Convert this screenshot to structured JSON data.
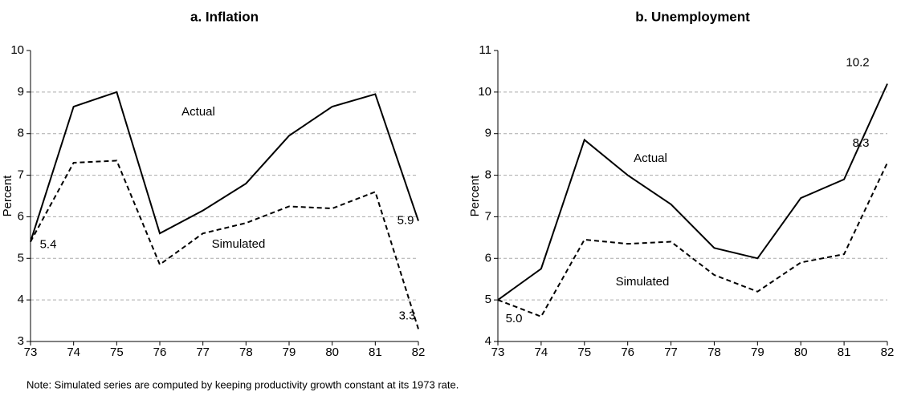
{
  "chart_data": [
    {
      "type": "line",
      "title": "a.  Inflation",
      "y_label": "Percent",
      "categories": [
        "73",
        "74",
        "75",
        "76",
        "77",
        "78",
        "79",
        "80",
        "81",
        "82"
      ],
      "ylim": [
        3,
        10
      ],
      "yticks": [
        3,
        4,
        5,
        6,
        7,
        8,
        9,
        10
      ],
      "grid": true,
      "series": [
        {
          "name": "Actual",
          "color": "#000000",
          "style": "solid",
          "values": [
            5.4,
            8.65,
            9.0,
            5.6,
            6.15,
            6.8,
            7.95,
            8.65,
            8.95,
            5.9
          ],
          "value_labels": [
            "5.4",
            null,
            null,
            null,
            null,
            null,
            null,
            null,
            null,
            "5.9"
          ]
        },
        {
          "name": "Simulated",
          "color": "#000000",
          "style": "dashed",
          "values": [
            5.4,
            7.3,
            7.35,
            4.85,
            5.6,
            5.85,
            6.25,
            6.2,
            6.6,
            3.3
          ],
          "value_labels": [
            null,
            null,
            null,
            null,
            null,
            null,
            null,
            null,
            null,
            "3.3"
          ]
        }
      ]
    },
    {
      "type": "line",
      "title": "b.  Unemployment",
      "y_label": "Percent",
      "categories": [
        "73",
        "74",
        "75",
        "76",
        "77",
        "78",
        "79",
        "80",
        "81",
        "82"
      ],
      "ylim": [
        4,
        11
      ],
      "yticks": [
        4,
        5,
        6,
        7,
        8,
        9,
        10,
        11
      ],
      "grid": true,
      "series": [
        {
          "name": "Actual",
          "color": "#000000",
          "style": "solid",
          "values": [
            5.0,
            5.75,
            8.85,
            8.0,
            7.3,
            6.25,
            6.0,
            7.45,
            7.9,
            10.2
          ],
          "value_labels": [
            "5.0",
            null,
            null,
            null,
            null,
            null,
            null,
            null,
            null,
            "10.2"
          ]
        },
        {
          "name": "Simulated",
          "color": "#000000",
          "style": "dashed",
          "values": [
            5.0,
            4.6,
            6.45,
            6.35,
            6.4,
            5.6,
            5.2,
            5.9,
            6.1,
            8.3
          ],
          "value_labels": [
            null,
            null,
            null,
            null,
            null,
            null,
            null,
            null,
            null,
            "8.3"
          ]
        }
      ]
    }
  ],
  "note": "Note: Simulated series are computed by keeping productivity growth constant at its 1973 rate."
}
